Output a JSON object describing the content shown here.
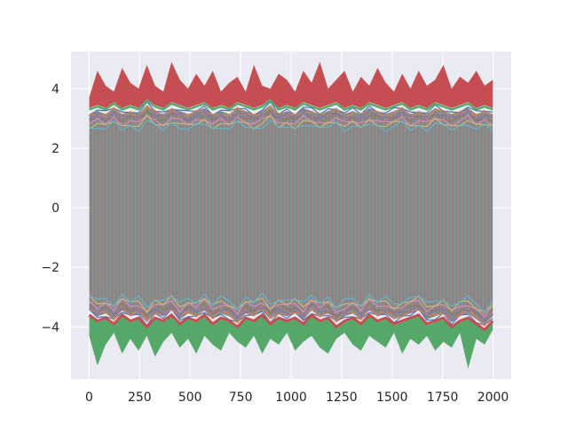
{
  "chart_data": {
    "type": "line",
    "title": "",
    "xlabel": "",
    "ylabel": "",
    "xlim": [
      -90,
      2090
    ],
    "ylim": [
      -5.75,
      5.25
    ],
    "x_ticks": [
      0,
      250,
      500,
      750,
      1000,
      1250,
      1500,
      1750,
      2000
    ],
    "x_tick_labels": [
      "0",
      "250",
      "500",
      "750",
      "1000",
      "1250",
      "1500",
      "1750",
      "2000"
    ],
    "y_ticks": [
      -4,
      -2,
      0,
      2,
      4
    ],
    "y_tick_labels": [
      "−4",
      "−2",
      "0",
      "2",
      "4"
    ],
    "grid": true,
    "legend": "none",
    "x_range": [
      0,
      1999
    ],
    "series": [
      {
        "color": "#c44e52",
        "kind": "upper envelope",
        "values": [
          3.7,
          4.6,
          4.1,
          3.9,
          4.7,
          4.2,
          4.0,
          4.8,
          4.1,
          3.9,
          4.9,
          4.3,
          4.0,
          4.5,
          4.1,
          4.6,
          3.9,
          4.2,
          4.4,
          3.9,
          4.8,
          4.1,
          4.0,
          4.5,
          4.3,
          3.9,
          4.6,
          4.2,
          4.9,
          4.0,
          4.3,
          4.6,
          3.9,
          4.4,
          4.1,
          4.7,
          4.2,
          3.9,
          4.5,
          4.0,
          4.6,
          4.1,
          4.3,
          4.8,
          4.0,
          4.4,
          4.2,
          4.6,
          4.1,
          4.3
        ]
      },
      {
        "color": "#55a868",
        "kind": "upper band",
        "values": [
          3.3,
          3.4,
          3.3,
          3.5,
          3.3,
          3.4,
          3.3,
          3.6,
          3.4,
          3.3,
          3.5,
          3.4,
          3.3,
          3.4,
          3.5,
          3.3,
          3.4,
          3.3,
          3.5,
          3.4,
          3.3,
          3.4,
          3.6,
          3.3,
          3.4,
          3.3,
          3.5,
          3.4,
          3.3,
          3.4,
          3.5,
          3.3,
          3.4,
          3.3,
          3.5,
          3.4,
          3.3,
          3.4,
          3.5,
          3.3,
          3.4,
          3.3,
          3.5,
          3.4,
          3.3,
          3.4,
          3.5,
          3.3,
          3.4,
          3.3
        ]
      },
      {
        "color": "#c44e52",
        "kind": "lower band",
        "values": [
          -3.6,
          -3.8,
          -3.7,
          -3.9,
          -3.6,
          -3.8,
          -3.7,
          -4.0,
          -3.7,
          -3.8,
          -3.6,
          -3.9,
          -3.7,
          -3.8,
          -3.6,
          -3.9,
          -3.7,
          -3.8,
          -4.0,
          -3.7,
          -3.8,
          -3.6,
          -3.9,
          -3.7,
          -3.8,
          -3.7,
          -3.9,
          -3.6,
          -3.8,
          -3.7,
          -4.0,
          -3.8,
          -3.7,
          -3.9,
          -3.6,
          -3.8,
          -3.7,
          -3.9,
          -3.8,
          -3.7,
          -3.6,
          -3.9,
          -3.8,
          -3.7,
          -4.0,
          -3.8,
          -3.7,
          -3.9,
          -4.1,
          -3.8
        ]
      },
      {
        "color": "#55a868",
        "kind": "lower envelope",
        "values": [
          -4.3,
          -5.3,
          -4.6,
          -4.2,
          -4.9,
          -4.4,
          -4.8,
          -4.3,
          -5.0,
          -4.5,
          -4.2,
          -4.7,
          -4.4,
          -4.9,
          -4.3,
          -4.6,
          -4.8,
          -4.2,
          -4.5,
          -4.7,
          -4.3,
          -4.9,
          -4.4,
          -4.6,
          -4.2,
          -4.8,
          -4.5,
          -4.3,
          -4.7,
          -4.9,
          -4.4,
          -4.2,
          -4.6,
          -4.8,
          -4.3,
          -4.5,
          -4.7,
          -4.2,
          -4.9,
          -4.4,
          -4.6,
          -4.3,
          -4.8,
          -4.5,
          -4.7,
          -4.2,
          -5.4,
          -4.4,
          -4.6,
          -4.1
        ]
      }
    ]
  }
}
